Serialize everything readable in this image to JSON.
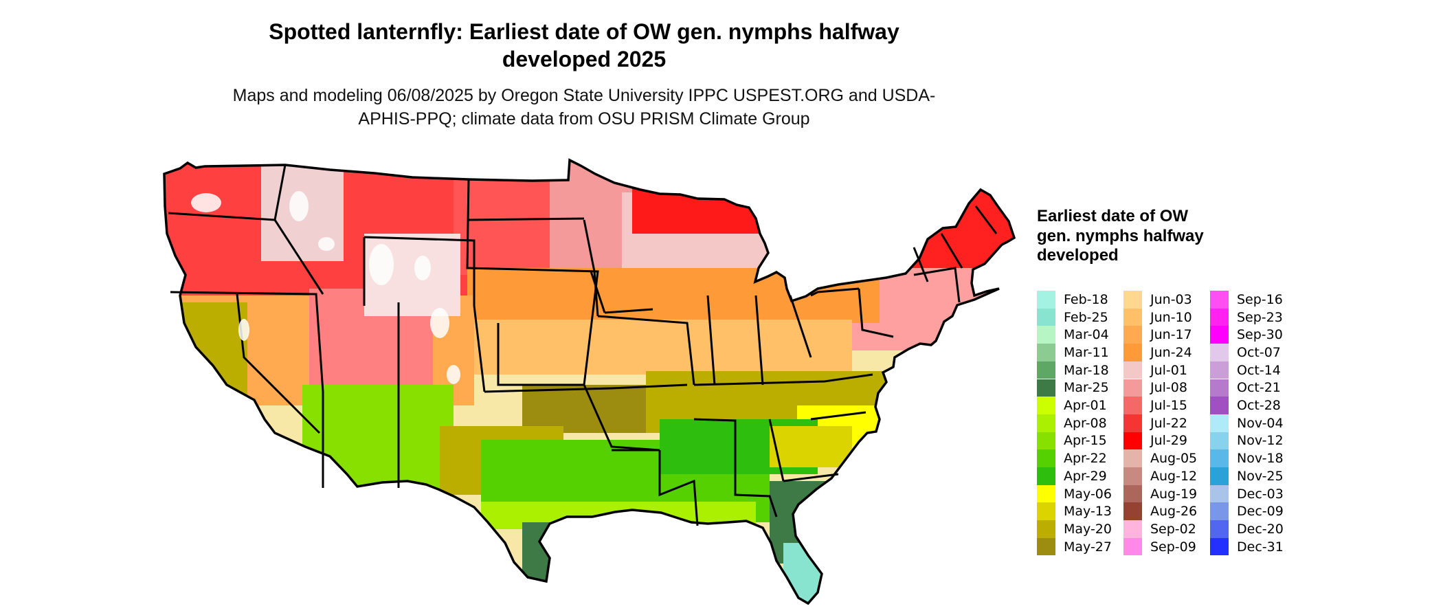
{
  "map": {
    "title": "Spotted lanternfly: Earliest date of OW gen. nymphs halfway developed 2025",
    "subtitle": "Maps and modeling 06/08/2025 by Oregon State University IPPC USPEST.ORG and USDA-APHIS-PPQ; climate data from OSU PRISM Climate Group",
    "region": "Contiguous United States",
    "colors": {
      "outline": "#000000",
      "background": "#ffffff",
      "no_data": "#ffffff"
    }
  },
  "legend": {
    "title": "Earliest date of OW gen. nymphs halfway developed",
    "columns": 3,
    "rows_per_column": 15,
    "items": [
      {
        "label": "Feb-18",
        "color": "#a4f2e2"
      },
      {
        "label": "Feb-25",
        "color": "#88e4cf"
      },
      {
        "label": "Mar-04",
        "color": "#b7f5c5"
      },
      {
        "label": "Mar-11",
        "color": "#8ccc93"
      },
      {
        "label": "Mar-18",
        "color": "#5ea765"
      },
      {
        "label": "Mar-25",
        "color": "#3d7a45"
      },
      {
        "label": "Apr-01",
        "color": "#ccff00"
      },
      {
        "label": "Apr-08",
        "color": "#aaf000"
      },
      {
        "label": "Apr-15",
        "color": "#88e000"
      },
      {
        "label": "Apr-22",
        "color": "#55d000"
      },
      {
        "label": "Apr-29",
        "color": "#2ebf0e"
      },
      {
        "label": "May-06",
        "color": "#ffff00"
      },
      {
        "label": "May-13",
        "color": "#dcd400"
      },
      {
        "label": "May-20",
        "color": "#bcae00"
      },
      {
        "label": "May-27",
        "color": "#9c8c10"
      },
      {
        "label": "Jun-03",
        "color": "#ffd890"
      },
      {
        "label": "Jun-10",
        "color": "#ffc068"
      },
      {
        "label": "Jun-17",
        "color": "#ffaa50"
      },
      {
        "label": "Jun-24",
        "color": "#ff9a38"
      },
      {
        "label": "Jul-01",
        "color": "#f5c8c8"
      },
      {
        "label": "Jul-08",
        "color": "#f59a9a"
      },
      {
        "label": "Jul-15",
        "color": "#f56868"
      },
      {
        "label": "Jul-22",
        "color": "#f53434"
      },
      {
        "label": "Jul-29",
        "color": "#ff0000"
      },
      {
        "label": "Aug-05",
        "color": "#e4b4aa"
      },
      {
        "label": "Aug-12",
        "color": "#c88a80"
      },
      {
        "label": "Aug-19",
        "color": "#ac665c"
      },
      {
        "label": "Aug-26",
        "color": "#964232"
      },
      {
        "label": "Sep-02",
        "color": "#ffb4de"
      },
      {
        "label": "Sep-09",
        "color": "#ff88e8"
      },
      {
        "label": "Sep-16",
        "color": "#ff4ef2"
      },
      {
        "label": "Sep-23",
        "color": "#ff22f0"
      },
      {
        "label": "Sep-30",
        "color": "#ff00ff"
      },
      {
        "label": "Oct-07",
        "color": "#e2c8ea"
      },
      {
        "label": "Oct-14",
        "color": "#cc9ed8"
      },
      {
        "label": "Oct-21",
        "color": "#b57acb"
      },
      {
        "label": "Oct-28",
        "color": "#a050c0"
      },
      {
        "label": "Nov-04",
        "color": "#aeeaf8"
      },
      {
        "label": "Nov-12",
        "color": "#88d2ee"
      },
      {
        "label": "Nov-18",
        "color": "#5ab8e8"
      },
      {
        "label": "Nov-25",
        "color": "#2aa2d8"
      },
      {
        "label": "Dec-03",
        "color": "#a8c4e8"
      },
      {
        "label": "Dec-09",
        "color": "#7a96e8"
      },
      {
        "label": "Dec-20",
        "color": "#5266f0"
      },
      {
        "label": "Dec-31",
        "color": "#2430ff"
      }
    ]
  }
}
